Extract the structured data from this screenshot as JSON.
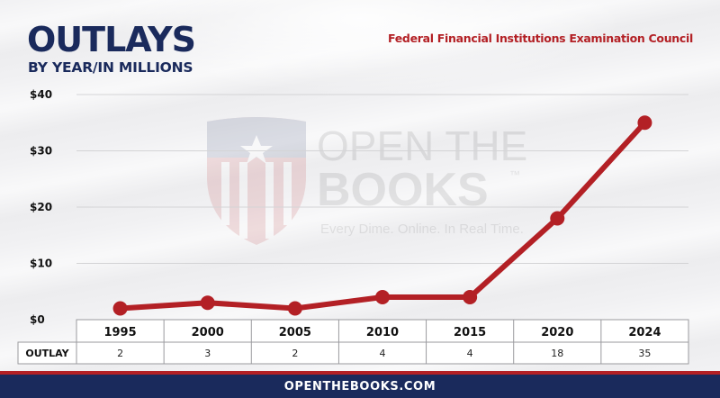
{
  "header": {
    "title": "OUTLAYS",
    "subtitle": "BY YEAR/IN MILLIONS",
    "agency": "Federal Financial Institutions Examination Council"
  },
  "watermark": {
    "line1": "OPEN THE",
    "line2": "BOOKS",
    "trademark": "™",
    "tagline": "Every Dime. Online. In Real Time."
  },
  "footer": {
    "text": "OPENTHEBOOKS.COM"
  },
  "colors": {
    "navy": "#1a2a5c",
    "red": "#b32025"
  },
  "chart_data": {
    "type": "line",
    "title": "OUTLAYS",
    "subtitle": "BY YEAR/IN MILLIONS",
    "categories": [
      "1995",
      "2000",
      "2005",
      "2010",
      "2015",
      "2020",
      "2024"
    ],
    "series": [
      {
        "values": [
          2,
          3,
          2,
          4,
          4,
          18,
          35
        ]
      }
    ],
    "ylim": [
      0,
      40
    ],
    "yticks": [
      0,
      10,
      20,
      30,
      40
    ],
    "ytick_labels": [
      "$0",
      "$10",
      "$20",
      "$30",
      "$40"
    ],
    "grid": true,
    "table": {
      "row_label": "OUTLAY",
      "values": [
        "2",
        "3",
        "2",
        "4",
        "4",
        "18",
        "35"
      ]
    }
  }
}
